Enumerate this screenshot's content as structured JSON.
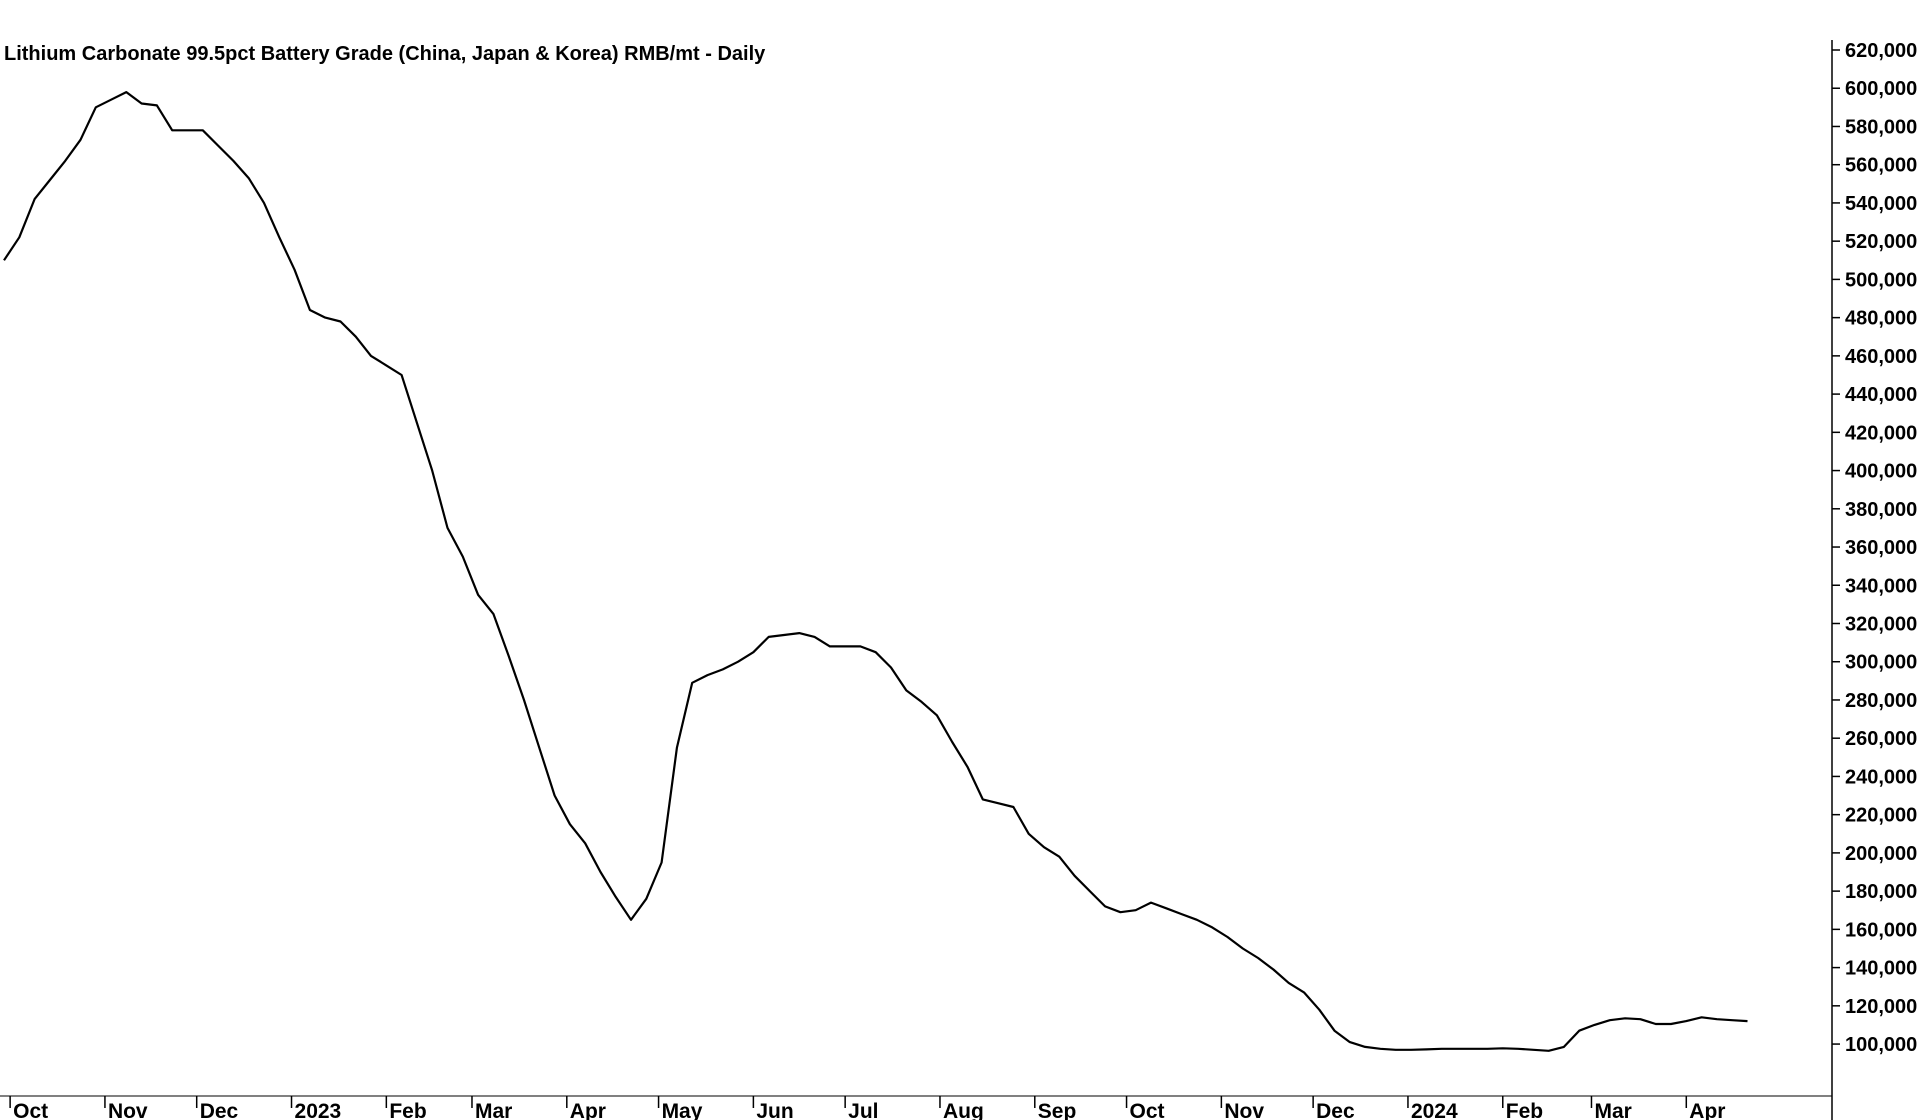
{
  "chart_data": {
    "type": "line",
    "title": "Lithium Carbonate 99.5pct Battery Grade (China, Japan & Korea) RMB/mt - Daily",
    "xlabel": "",
    "ylabel": "",
    "ylim": [
      88000,
      620000
    ],
    "grid": false,
    "y_axis_side": "right",
    "y_ticks": [
      100000,
      120000,
      140000,
      160000,
      180000,
      200000,
      220000,
      240000,
      260000,
      280000,
      300000,
      320000,
      340000,
      360000,
      380000,
      400000,
      420000,
      440000,
      460000,
      480000,
      500000,
      520000,
      540000,
      560000,
      580000,
      600000,
      620000
    ],
    "y_tick_labels": [
      "100,000",
      "120,000",
      "140,000",
      "160,000",
      "180,000",
      "200,000",
      "220,000",
      "240,000",
      "260,000",
      "280,000",
      "300,000",
      "320,000",
      "340,000",
      "360,000",
      "380,000",
      "400,000",
      "420,000",
      "440,000",
      "460,000",
      "480,000",
      "500,000",
      "520,000",
      "540,000",
      "560,000",
      "580,000",
      "600,000",
      "620,000"
    ],
    "x_range": [
      "2022-09-29",
      "2024-04-30"
    ],
    "x_ticks": [
      {
        "date": "2022-10-01",
        "label": "Oct"
      },
      {
        "date": "2022-11-01",
        "label": "Nov"
      },
      {
        "date": "2022-12-01",
        "label": "Dec"
      },
      {
        "date": "2023-01-01",
        "label": "2023"
      },
      {
        "date": "2023-02-01",
        "label": "Feb"
      },
      {
        "date": "2023-03-01",
        "label": "Mar"
      },
      {
        "date": "2023-04-01",
        "label": "Apr"
      },
      {
        "date": "2023-05-01",
        "label": "May"
      },
      {
        "date": "2023-06-01",
        "label": "Jun"
      },
      {
        "date": "2023-07-01",
        "label": "Jul"
      },
      {
        "date": "2023-08-01",
        "label": "Aug"
      },
      {
        "date": "2023-09-01",
        "label": "Sep"
      },
      {
        "date": "2023-10-01",
        "label": "Oct"
      },
      {
        "date": "2023-11-01",
        "label": "Nov"
      },
      {
        "date": "2023-12-01",
        "label": "Dec"
      },
      {
        "date": "2024-01-01",
        "label": "2024"
      },
      {
        "date": "2024-02-01",
        "label": "Feb"
      },
      {
        "date": "2024-03-01",
        "label": "Mar"
      },
      {
        "date": "2024-04-01",
        "label": "Apr"
      }
    ],
    "line_color": "#000000",
    "series": [
      {
        "name": "",
        "points": [
          [
            "2022-09-29",
            510000
          ],
          [
            "2022-10-04",
            522000
          ],
          [
            "2022-10-09",
            542000
          ],
          [
            "2022-10-14",
            552000
          ],
          [
            "2022-10-19",
            562000
          ],
          [
            "2022-10-24",
            573000
          ],
          [
            "2022-10-29",
            590000
          ],
          [
            "2022-11-03",
            594000
          ],
          [
            "2022-11-08",
            598000
          ],
          [
            "2022-11-13",
            592000
          ],
          [
            "2022-11-18",
            591000
          ],
          [
            "2022-11-23",
            578000
          ],
          [
            "2022-11-28",
            578000
          ],
          [
            "2022-12-03",
            578000
          ],
          [
            "2022-12-08",
            570000
          ],
          [
            "2022-12-13",
            562000
          ],
          [
            "2022-12-18",
            553000
          ],
          [
            "2022-12-23",
            540000
          ],
          [
            "2022-12-28",
            522000
          ],
          [
            "2023-01-02",
            505000
          ],
          [
            "2023-01-07",
            484000
          ],
          [
            "2023-01-12",
            480000
          ],
          [
            "2023-01-17",
            478000
          ],
          [
            "2023-01-22",
            470000
          ],
          [
            "2023-01-27",
            460000
          ],
          [
            "2023-02-01",
            455000
          ],
          [
            "2023-02-06",
            450000
          ],
          [
            "2023-02-11",
            425000
          ],
          [
            "2023-02-16",
            400000
          ],
          [
            "2023-02-21",
            370000
          ],
          [
            "2023-02-26",
            355000
          ],
          [
            "2023-03-03",
            335000
          ],
          [
            "2023-03-08",
            325000
          ],
          [
            "2023-03-13",
            303000
          ],
          [
            "2023-03-18",
            280000
          ],
          [
            "2023-03-23",
            255000
          ],
          [
            "2023-03-28",
            230000
          ],
          [
            "2023-04-02",
            215000
          ],
          [
            "2023-04-07",
            205000
          ],
          [
            "2023-04-12",
            190000
          ],
          [
            "2023-04-17",
            177000
          ],
          [
            "2023-04-22",
            165000
          ],
          [
            "2023-04-27",
            176000
          ],
          [
            "2023-05-02",
            195000
          ],
          [
            "2023-05-07",
            255000
          ],
          [
            "2023-05-12",
            289000
          ],
          [
            "2023-05-17",
            293000
          ],
          [
            "2023-05-22",
            296000
          ],
          [
            "2023-05-27",
            300000
          ],
          [
            "2023-06-01",
            305000
          ],
          [
            "2023-06-06",
            313000
          ],
          [
            "2023-06-11",
            314000
          ],
          [
            "2023-06-16",
            315000
          ],
          [
            "2023-06-21",
            313000
          ],
          [
            "2023-06-26",
            308000
          ],
          [
            "2023-07-01",
            308000
          ],
          [
            "2023-07-06",
            308000
          ],
          [
            "2023-07-11",
            305000
          ],
          [
            "2023-07-16",
            297000
          ],
          [
            "2023-07-21",
            285000
          ],
          [
            "2023-07-26",
            279000
          ],
          [
            "2023-07-31",
            272000
          ],
          [
            "2023-08-05",
            258000
          ],
          [
            "2023-08-10",
            245000
          ],
          [
            "2023-08-15",
            228000
          ],
          [
            "2023-08-20",
            226000
          ],
          [
            "2023-08-25",
            224000
          ],
          [
            "2023-08-30",
            210000
          ],
          [
            "2023-09-04",
            203000
          ],
          [
            "2023-09-09",
            198000
          ],
          [
            "2023-09-14",
            188000
          ],
          [
            "2023-09-19",
            180000
          ],
          [
            "2023-09-24",
            172000
          ],
          [
            "2023-09-29",
            169000
          ],
          [
            "2023-10-04",
            170000
          ],
          [
            "2023-10-09",
            174000
          ],
          [
            "2023-10-14",
            171000
          ],
          [
            "2023-10-19",
            168000
          ],
          [
            "2023-10-24",
            165000
          ],
          [
            "2023-10-29",
            161000
          ],
          [
            "2023-11-03",
            156000
          ],
          [
            "2023-11-08",
            150000
          ],
          [
            "2023-11-13",
            145000
          ],
          [
            "2023-11-18",
            139000
          ],
          [
            "2023-11-23",
            132000
          ],
          [
            "2023-11-28",
            127000
          ],
          [
            "2023-12-03",
            118000
          ],
          [
            "2023-12-08",
            107000
          ],
          [
            "2023-12-13",
            101000
          ],
          [
            "2023-12-18",
            98500
          ],
          [
            "2023-12-23",
            97500
          ],
          [
            "2023-12-28",
            97000
          ],
          [
            "2024-01-02",
            97000
          ],
          [
            "2024-01-07",
            97200
          ],
          [
            "2024-01-12",
            97500
          ],
          [
            "2024-01-17",
            97500
          ],
          [
            "2024-01-22",
            97500
          ],
          [
            "2024-01-27",
            97500
          ],
          [
            "2024-02-01",
            97800
          ],
          [
            "2024-02-06",
            97500
          ],
          [
            "2024-02-11",
            97000
          ],
          [
            "2024-02-16",
            96500
          ],
          [
            "2024-02-21",
            98500
          ],
          [
            "2024-02-26",
            107000
          ],
          [
            "2024-03-02",
            110000
          ],
          [
            "2024-03-07",
            112500
          ],
          [
            "2024-03-12",
            113500
          ],
          [
            "2024-03-17",
            113000
          ],
          [
            "2024-03-22",
            110500
          ],
          [
            "2024-03-27",
            110500
          ],
          [
            "2024-04-01",
            112000
          ],
          [
            "2024-04-06",
            114000
          ],
          [
            "2024-04-11",
            113000
          ],
          [
            "2024-04-16",
            112500
          ],
          [
            "2024-04-21",
            112000
          ]
        ]
      }
    ]
  }
}
